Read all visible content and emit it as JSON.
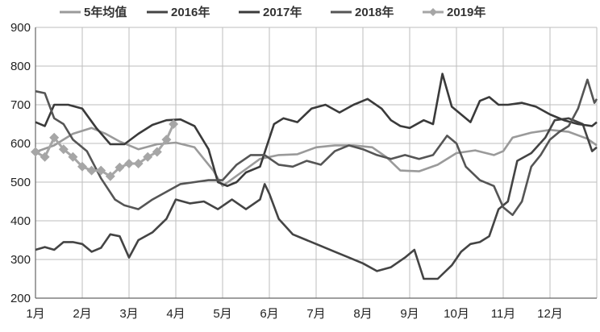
{
  "chart_data": {
    "type": "line",
    "title": "",
    "xlabel": "",
    "ylabel": "",
    "ylim": [
      200,
      900
    ],
    "yticks": [
      200,
      300,
      400,
      500,
      600,
      700,
      800,
      900
    ],
    "xlim": [
      1,
      13
    ],
    "xticks": [
      {
        "v": 1,
        "label": "1月"
      },
      {
        "v": 2,
        "label": "2月"
      },
      {
        "v": 3,
        "label": "3月"
      },
      {
        "v": 4,
        "label": "4月"
      },
      {
        "v": 5,
        "label": "5月"
      },
      {
        "v": 6,
        "label": "6月"
      },
      {
        "v": 7,
        "label": "7月"
      },
      {
        "v": 8,
        "label": "8月"
      },
      {
        "v": 9,
        "label": "9月"
      },
      {
        "v": 10,
        "label": "10月"
      },
      {
        "v": 11,
        "label": "11月"
      },
      {
        "v": 12,
        "label": "12月"
      }
    ],
    "grid": true,
    "legend_position": "top",
    "series": [
      {
        "name": "5年均值",
        "color": "#9a9a9a",
        "marker": "none",
        "points": [
          [
            1,
            578
          ],
          [
            1.4,
            595
          ],
          [
            1.8,
            625
          ],
          [
            2.2,
            640
          ],
          [
            2.5,
            625
          ],
          [
            2.8,
            605
          ],
          [
            3.2,
            585
          ],
          [
            3.6,
            598
          ],
          [
            4,
            602
          ],
          [
            4.4,
            590
          ],
          [
            4.8,
            530
          ],
          [
            5.0,
            490
          ],
          [
            5.4,
            525
          ],
          [
            5.8,
            560
          ],
          [
            6.2,
            570
          ],
          [
            6.6,
            572
          ],
          [
            7.0,
            590
          ],
          [
            7.4,
            595
          ],
          [
            7.8,
            595
          ],
          [
            8.2,
            590
          ],
          [
            8.5,
            565
          ],
          [
            8.8,
            530
          ],
          [
            9.2,
            528
          ],
          [
            9.6,
            545
          ],
          [
            10.0,
            575
          ],
          [
            10.4,
            582
          ],
          [
            10.8,
            570
          ],
          [
            11.0,
            580
          ],
          [
            11.2,
            615
          ],
          [
            11.6,
            628
          ],
          [
            12.0,
            635
          ],
          [
            12.4,
            630
          ],
          [
            12.8,
            612
          ],
          [
            13,
            595
          ]
        ]
      },
      {
        "name": "2016年",
        "color": "#444444",
        "marker": "none",
        "points": [
          [
            1,
            325
          ],
          [
            1.2,
            332
          ],
          [
            1.4,
            325
          ],
          [
            1.6,
            345
          ],
          [
            1.8,
            345
          ],
          [
            2.0,
            340
          ],
          [
            2.2,
            320
          ],
          [
            2.4,
            330
          ],
          [
            2.6,
            365
          ],
          [
            2.8,
            360
          ],
          [
            3.0,
            305
          ],
          [
            3.2,
            350
          ],
          [
            3.5,
            370
          ],
          [
            3.8,
            405
          ],
          [
            4.0,
            455
          ],
          [
            4.3,
            445
          ],
          [
            4.6,
            450
          ],
          [
            4.9,
            430
          ],
          [
            5.2,
            455
          ],
          [
            5.5,
            430
          ],
          [
            5.8,
            455
          ],
          [
            5.9,
            495
          ],
          [
            6.0,
            470
          ],
          [
            6.2,
            405
          ],
          [
            6.5,
            365
          ],
          [
            6.8,
            350
          ],
          [
            7.1,
            335
          ],
          [
            7.4,
            320
          ],
          [
            7.7,
            305
          ],
          [
            8.0,
            290
          ],
          [
            8.3,
            270
          ],
          [
            8.6,
            280
          ],
          [
            8.9,
            305
          ],
          [
            9.1,
            325
          ],
          [
            9.3,
            250
          ],
          [
            9.6,
            250
          ],
          [
            9.9,
            285
          ],
          [
            10.1,
            320
          ],
          [
            10.3,
            340
          ],
          [
            10.5,
            345
          ],
          [
            10.7,
            360
          ],
          [
            10.9,
            430
          ],
          [
            11.1,
            450
          ],
          [
            11.3,
            555
          ],
          [
            11.6,
            575
          ],
          [
            11.9,
            615
          ],
          [
            12.1,
            660
          ],
          [
            12.4,
            665
          ],
          [
            12.7,
            650
          ],
          [
            12.9,
            580
          ],
          [
            13,
            590
          ]
        ]
      },
      {
        "name": "2017年",
        "color": "#3a3a3a",
        "marker": "none",
        "points": [
          [
            1,
            655
          ],
          [
            1.2,
            645
          ],
          [
            1.4,
            700
          ],
          [
            1.7,
            700
          ],
          [
            2.0,
            690
          ],
          [
            2.3,
            640
          ],
          [
            2.6,
            598
          ],
          [
            2.9,
            598
          ],
          [
            3.2,
            625
          ],
          [
            3.5,
            648
          ],
          [
            3.8,
            660
          ],
          [
            4.1,
            662
          ],
          [
            4.4,
            645
          ],
          [
            4.7,
            585
          ],
          [
            4.9,
            500
          ],
          [
            5.1,
            490
          ],
          [
            5.3,
            500
          ],
          [
            5.5,
            525
          ],
          [
            5.8,
            540
          ],
          [
            6.1,
            650
          ],
          [
            6.3,
            665
          ],
          [
            6.6,
            655
          ],
          [
            6.9,
            690
          ],
          [
            7.2,
            700
          ],
          [
            7.5,
            680
          ],
          [
            7.8,
            700
          ],
          [
            8.1,
            715
          ],
          [
            8.4,
            690
          ],
          [
            8.6,
            660
          ],
          [
            8.8,
            645
          ],
          [
            9.0,
            640
          ],
          [
            9.3,
            660
          ],
          [
            9.5,
            650
          ],
          [
            9.7,
            780
          ],
          [
            9.9,
            695
          ],
          [
            10.1,
            675
          ],
          [
            10.3,
            655
          ],
          [
            10.5,
            710
          ],
          [
            10.7,
            720
          ],
          [
            10.9,
            700
          ],
          [
            11.1,
            700
          ],
          [
            11.4,
            705
          ],
          [
            11.7,
            695
          ],
          [
            12.0,
            675
          ],
          [
            12.3,
            660
          ],
          [
            12.6,
            650
          ],
          [
            12.9,
            645
          ],
          [
            13,
            655
          ]
        ]
      },
      {
        "name": "2018年",
        "color": "#555555",
        "marker": "none",
        "points": [
          [
            1,
            735
          ],
          [
            1.2,
            730
          ],
          [
            1.4,
            665
          ],
          [
            1.6,
            650
          ],
          [
            1.8,
            610
          ],
          [
            2.1,
            580
          ],
          [
            2.4,
            510
          ],
          [
            2.7,
            455
          ],
          [
            2.9,
            440
          ],
          [
            3.2,
            430
          ],
          [
            3.5,
            455
          ],
          [
            3.8,
            475
          ],
          [
            4.1,
            495
          ],
          [
            4.4,
            500
          ],
          [
            4.7,
            505
          ],
          [
            5.0,
            505
          ],
          [
            5.3,
            545
          ],
          [
            5.6,
            570
          ],
          [
            5.9,
            570
          ],
          [
            6.2,
            545
          ],
          [
            6.5,
            540
          ],
          [
            6.8,
            555
          ],
          [
            7.1,
            545
          ],
          [
            7.4,
            580
          ],
          [
            7.7,
            595
          ],
          [
            8.0,
            585
          ],
          [
            8.3,
            570
          ],
          [
            8.6,
            560
          ],
          [
            8.9,
            570
          ],
          [
            9.2,
            560
          ],
          [
            9.5,
            570
          ],
          [
            9.8,
            620
          ],
          [
            10.0,
            600
          ],
          [
            10.2,
            540
          ],
          [
            10.5,
            505
          ],
          [
            10.8,
            490
          ],
          [
            11.0,
            435
          ],
          [
            11.2,
            415
          ],
          [
            11.4,
            450
          ],
          [
            11.6,
            540
          ],
          [
            11.8,
            570
          ],
          [
            12.0,
            610
          ],
          [
            12.2,
            630
          ],
          [
            12.4,
            645
          ],
          [
            12.6,
            690
          ],
          [
            12.8,
            765
          ],
          [
            12.95,
            705
          ],
          [
            13,
            715
          ]
        ]
      },
      {
        "name": "2019年",
        "color": "#a6a6a6",
        "marker": "diamond",
        "points": [
          [
            1,
            578
          ],
          [
            1.2,
            565
          ],
          [
            1.4,
            615
          ],
          [
            1.6,
            585
          ],
          [
            1.8,
            565
          ],
          [
            2.0,
            540
          ],
          [
            2.2,
            530
          ],
          [
            2.4,
            530
          ],
          [
            2.6,
            515
          ],
          [
            2.8,
            538
          ],
          [
            3.0,
            548
          ],
          [
            3.2,
            548
          ],
          [
            3.4,
            565
          ],
          [
            3.6,
            578
          ],
          [
            3.8,
            610
          ],
          [
            3.95,
            650
          ]
        ]
      }
    ]
  }
}
